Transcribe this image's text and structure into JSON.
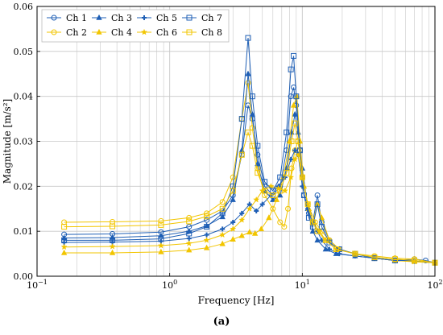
{
  "chart_data": {
    "type": "line",
    "xlabel": "Frequency  [Hz]",
    "ylabel": "Magnitude  [m/s²]",
    "caption": "(a)",
    "x_scale": "log",
    "xlim": [
      0.1,
      100
    ],
    "ylim": [
      0,
      0.06
    ],
    "grid": true,
    "legend_position": "top-left",
    "x_ticks": [
      {
        "value": 0.1,
        "base": "10",
        "exp": "−1"
      },
      {
        "value": 1,
        "base": "10",
        "exp": "0"
      },
      {
        "value": 10,
        "base": "10",
        "exp": "1"
      },
      {
        "value": 100,
        "base": "10",
        "exp": "2"
      }
    ],
    "y_ticks": [
      "0.00",
      "0.01",
      "0.02",
      "0.03",
      "0.04",
      "0.05",
      "0.06"
    ],
    "colors": {
      "blue": "#1f5fb5",
      "yellow": "#f2c500",
      "grid": "#c8c8c8"
    },
    "series": [
      {
        "name": "Ch 1",
        "color": "#1f5fb5",
        "marker": "circle",
        "x": [
          0.16,
          0.37,
          0.86,
          1.4,
          1.9,
          2.5,
          3.0,
          3.5,
          3.9,
          4.2,
          4.6,
          5.2,
          6.0,
          6.8,
          7.6,
          8.2,
          8.6,
          9.0,
          9.6,
          10.3,
          11.2,
          12.0,
          13.0,
          14.0,
          16.0,
          19.0,
          25.0,
          35.0,
          50.0,
          70.0,
          85.0,
          100.0
        ],
        "y": [
          0.0093,
          0.0094,
          0.0098,
          0.011,
          0.0125,
          0.0145,
          0.018,
          0.027,
          0.038,
          0.035,
          0.027,
          0.02,
          0.018,
          0.02,
          0.028,
          0.04,
          0.042,
          0.038,
          0.028,
          0.018,
          0.014,
          0.012,
          0.018,
          0.012,
          0.008,
          0.006,
          0.005,
          0.004,
          0.0035,
          0.0038,
          0.0035,
          0.003
        ]
      },
      {
        "name": "Ch 2",
        "color": "#f2c500",
        "marker": "circle",
        "x": [
          0.16,
          0.37,
          0.86,
          1.4,
          1.9,
          2.5,
          3.0,
          3.5,
          3.9,
          4.2,
          4.6,
          5.2,
          6.0,
          6.8,
          7.3,
          7.8,
          8.3,
          8.8,
          9.3,
          10.0,
          11.0,
          12.5,
          14.0,
          16.0,
          19.0,
          25.0,
          35.0,
          50.0,
          70.0,
          100.0
        ],
        "y": [
          0.012,
          0.0121,
          0.0123,
          0.013,
          0.014,
          0.0165,
          0.022,
          0.035,
          0.043,
          0.033,
          0.024,
          0.018,
          0.015,
          0.012,
          0.011,
          0.015,
          0.024,
          0.028,
          0.03,
          0.022,
          0.016,
          0.012,
          0.01,
          0.008,
          0.006,
          0.005,
          0.0045,
          0.004,
          0.0038,
          0.003
        ]
      },
      {
        "name": "Ch 3",
        "color": "#1f5fb5",
        "marker": "triangle",
        "x": [
          0.16,
          0.37,
          0.86,
          1.4,
          1.9,
          2.5,
          3.0,
          3.5,
          3.9,
          4.2,
          4.6,
          5.2,
          6.0,
          6.8,
          7.6,
          8.3,
          8.8,
          9.3,
          10.0,
          11.0,
          12.0,
          13.0,
          15.0,
          18.0,
          25.0,
          35.0,
          50.0,
          70.0,
          100.0
        ],
        "y": [
          0.0085,
          0.0086,
          0.009,
          0.01,
          0.0112,
          0.0132,
          0.017,
          0.028,
          0.045,
          0.036,
          0.025,
          0.019,
          0.017,
          0.018,
          0.024,
          0.032,
          0.036,
          0.032,
          0.024,
          0.015,
          0.01,
          0.008,
          0.006,
          0.005,
          0.0045,
          0.004,
          0.0035,
          0.0033,
          0.003
        ]
      },
      {
        "name": "Ch 4",
        "color": "#f2c500",
        "marker": "triangle",
        "x": [
          0.16,
          0.37,
          0.86,
          1.4,
          1.9,
          2.5,
          3.0,
          3.5,
          4.0,
          4.4,
          4.9,
          5.6,
          6.4,
          7.2,
          8.0,
          8.6,
          9.1,
          9.6,
          10.3,
          11.2,
          12.0,
          13.0,
          14.0,
          16.0,
          19.0,
          25.0,
          35.0,
          50.0,
          70.0,
          100.0
        ],
        "y": [
          0.0052,
          0.0052,
          0.0054,
          0.0058,
          0.0063,
          0.0072,
          0.0082,
          0.009,
          0.0098,
          0.0095,
          0.0105,
          0.013,
          0.017,
          0.022,
          0.03,
          0.038,
          0.04,
          0.03,
          0.02,
          0.015,
          0.012,
          0.016,
          0.013,
          0.008,
          0.006,
          0.005,
          0.004,
          0.0035,
          0.0033,
          0.003
        ]
      },
      {
        "name": "Ch 5",
        "color": "#1f5fb5",
        "marker": "plus",
        "x": [
          0.16,
          0.37,
          0.86,
          1.4,
          1.9,
          2.5,
          3.0,
          3.5,
          4.0,
          4.5,
          5.0,
          5.8,
          6.6,
          7.4,
          8.2,
          8.8,
          9.3,
          10.0,
          11.0,
          12.0,
          13.0,
          14.0,
          16.0,
          19.0,
          25.0,
          35.0,
          50.0,
          70.0,
          100.0
        ],
        "y": [
          0.0075,
          0.0076,
          0.0078,
          0.0084,
          0.0092,
          0.0105,
          0.012,
          0.014,
          0.016,
          0.0145,
          0.016,
          0.018,
          0.02,
          0.022,
          0.026,
          0.028,
          0.027,
          0.02,
          0.015,
          0.012,
          0.01,
          0.008,
          0.006,
          0.005,
          0.0045,
          0.004,
          0.0035,
          0.0033,
          0.003
        ]
      },
      {
        "name": "Ch 6",
        "color": "#f2c500",
        "marker": "star",
        "x": [
          0.16,
          0.37,
          0.86,
          1.4,
          1.9,
          2.5,
          3.0,
          3.5,
          4.0,
          4.5,
          5.0,
          5.8,
          6.6,
          7.4,
          8.2,
          8.8,
          9.3,
          10.0,
          11.0,
          12.0,
          13.5,
          15.0,
          18.0,
          25.0,
          35.0,
          50.0,
          70.0,
          100.0
        ],
        "y": [
          0.0065,
          0.0066,
          0.0068,
          0.0073,
          0.008,
          0.0092,
          0.0105,
          0.0125,
          0.015,
          0.017,
          0.019,
          0.02,
          0.0195,
          0.019,
          0.022,
          0.026,
          0.027,
          0.022,
          0.016,
          0.012,
          0.01,
          0.008,
          0.006,
          0.005,
          0.004,
          0.0035,
          0.0032,
          0.003
        ]
      },
      {
        "name": "Ch 7",
        "color": "#1f5fb5",
        "marker": "square",
        "x": [
          0.16,
          0.37,
          0.86,
          1.4,
          1.9,
          2.5,
          3.0,
          3.5,
          3.9,
          4.2,
          4.6,
          5.2,
          6.0,
          6.8,
          7.6,
          8.2,
          8.6,
          9.0,
          9.6,
          10.3,
          11.2,
          12.0,
          13.0,
          14.0,
          16.0,
          19.0,
          25.0,
          35.0,
          50.0,
          70.0,
          100.0
        ],
        "y": [
          0.008,
          0.008,
          0.0083,
          0.0095,
          0.011,
          0.014,
          0.02,
          0.035,
          0.053,
          0.04,
          0.029,
          0.021,
          0.019,
          0.022,
          0.032,
          0.046,
          0.049,
          0.04,
          0.028,
          0.018,
          0.013,
          0.011,
          0.016,
          0.011,
          0.0075,
          0.006,
          0.005,
          0.004,
          0.0035,
          0.0035,
          0.003
        ]
      },
      {
        "name": "Ch 8",
        "color": "#f2c500",
        "marker": "square",
        "x": [
          0.16,
          0.37,
          0.86,
          1.4,
          1.9,
          2.5,
          3.0,
          3.5,
          3.9,
          4.2,
          4.6,
          5.2,
          6.0,
          6.8,
          7.6,
          8.3,
          8.8,
          9.3,
          10.0,
          11.0,
          12.0,
          13.0,
          15.0,
          18.0,
          25.0,
          35.0,
          50.0,
          70.0,
          100.0
        ],
        "y": [
          0.011,
          0.0111,
          0.0114,
          0.0122,
          0.0133,
          0.015,
          0.019,
          0.027,
          0.032,
          0.029,
          0.023,
          0.019,
          0.018,
          0.019,
          0.023,
          0.03,
          0.034,
          0.03,
          0.022,
          0.016,
          0.012,
          0.01,
          0.008,
          0.006,
          0.005,
          0.0042,
          0.0038,
          0.0035,
          0.003
        ]
      }
    ]
  }
}
